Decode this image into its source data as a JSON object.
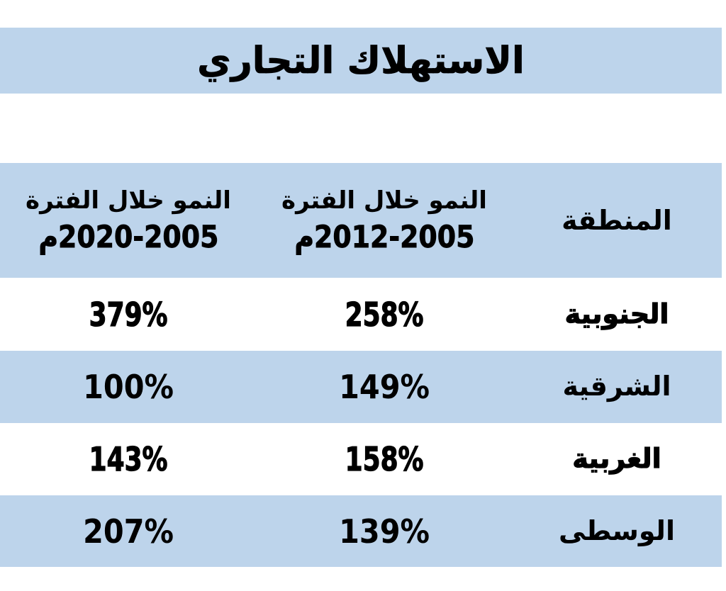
{
  "title": "الاستهلاك التجاري",
  "accent_color": "#BDD4EB",
  "text_color": "#000000",
  "table": {
    "columns": [
      {
        "id": "region",
        "label": "المنطقة"
      },
      {
        "id": "growth_2005_2012",
        "label_line1": "النمو خلال الفترة",
        "label_line2": "2012-2005م"
      },
      {
        "id": "growth_2005_2020",
        "label_line1": "النمو خلال الفترة",
        "label_line2": "2020-2005م"
      }
    ],
    "rows": [
      {
        "region": "الجنوبية",
        "growth_2005_2012": "258%",
        "growth_2005_2020": "379%",
        "emphasis": true
      },
      {
        "region": "الشرقية",
        "growth_2005_2012": "149%",
        "growth_2005_2020": "100%",
        "emphasis": false
      },
      {
        "region": "الغربية",
        "growth_2005_2012": "158%",
        "growth_2005_2020": "143%",
        "emphasis": true
      },
      {
        "region": "الوسطى",
        "growth_2005_2012": "139%",
        "growth_2005_2020": "207%",
        "emphasis": false
      }
    ]
  },
  "chart_data": {
    "type": "table",
    "title": "الاستهلاك التجاري",
    "categories": [
      "الجنوبية",
      "الشرقية",
      "الغربية",
      "الوسطى"
    ],
    "series": [
      {
        "name": "النمو خلال الفترة 2005-2012م",
        "values": [
          "258%",
          "149%",
          "158%",
          "139%"
        ]
      },
      {
        "name": "النمو خلال الفترة 2005-2020م",
        "values": [
          "379%",
          "100%",
          "143%",
          "207%"
        ]
      }
    ]
  }
}
